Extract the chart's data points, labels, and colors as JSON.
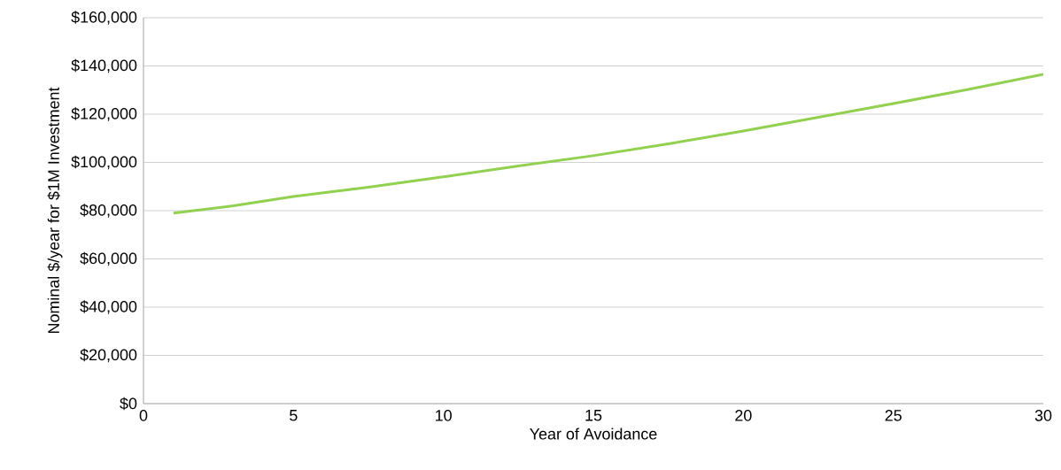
{
  "chart_data": {
    "type": "line",
    "xlabel": "Year of Avoidance",
    "ylabel": "Nominal $/year for $1M Investment",
    "x": [
      1,
      3,
      5,
      7.5,
      10,
      12.5,
      15,
      17.5,
      20,
      22.5,
      25,
      27.5,
      30
    ],
    "values": [
      79000,
      82000,
      85900,
      89700,
      94000,
      98500,
      102800,
      107700,
      113000,
      118700,
      124400,
      130300,
      136500
    ],
    "color": "#92d050",
    "grid": "y",
    "marker": "none",
    "line_style": "solid",
    "xlim": [
      0,
      30
    ],
    "xticks": [
      0,
      5,
      10,
      15,
      20,
      25,
      30
    ],
    "ylim": [
      0,
      160000
    ],
    "yticks": [
      {
        "value": 0,
        "label": "$0"
      },
      {
        "value": 20000,
        "label": "$20,000"
      },
      {
        "value": 40000,
        "label": "$40,000"
      },
      {
        "value": 60000,
        "label": "$60,000"
      },
      {
        "value": 80000,
        "label": "$80,000"
      },
      {
        "value": 100000,
        "label": "$100,000"
      },
      {
        "value": 120000,
        "label": "$120,000"
      },
      {
        "value": 140000,
        "label": "$140,000"
      },
      {
        "value": 160000,
        "label": "$160,000"
      }
    ]
  }
}
